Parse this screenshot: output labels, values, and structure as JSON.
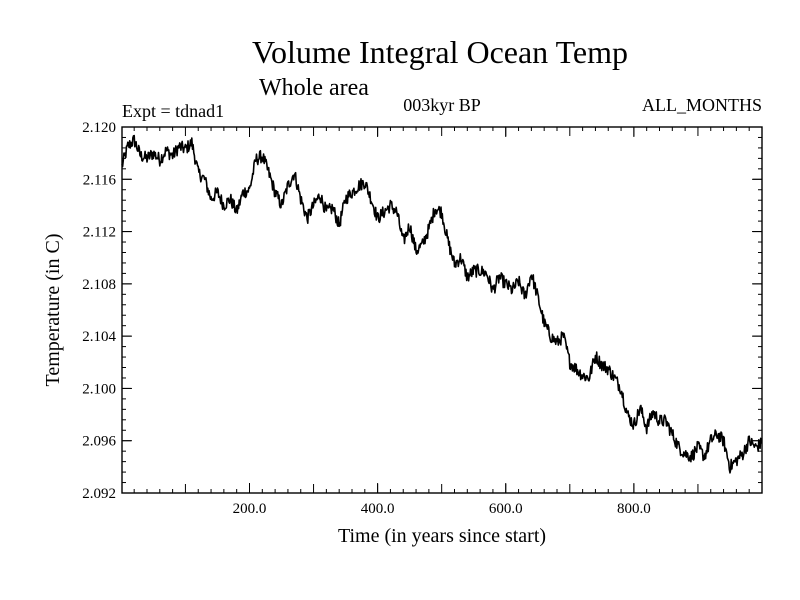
{
  "chart_data": {
    "type": "line",
    "title": "Volume Integral Ocean Temp",
    "subtitle": "Whole area",
    "header_left": "Expt = tdnad1",
    "header_center": "003kyr BP",
    "header_right": "ALL_MONTHS",
    "xlabel": "Time (in years since start)",
    "ylabel": "Temperature (in C)",
    "xlim": [
      1,
      1000
    ],
    "ylim": [
      2.092,
      2.12
    ],
    "x_ticks": [
      {
        "value": 200,
        "label": "200.0"
      },
      {
        "value": 400,
        "label": "400.0"
      },
      {
        "value": 600,
        "label": "600.0"
      },
      {
        "value": 800,
        "label": "800.0"
      }
    ],
    "y_ticks": [
      {
        "value": 2.092,
        "label": "2.092"
      },
      {
        "value": 2.096,
        "label": "2.096"
      },
      {
        "value": 2.1,
        "label": "2.100"
      },
      {
        "value": 2.104,
        "label": "2.104"
      },
      {
        "value": 2.108,
        "label": "2.108"
      },
      {
        "value": 2.112,
        "label": "2.112"
      },
      {
        "value": 2.116,
        "label": "2.116"
      },
      {
        "value": 2.12,
        "label": "2.120"
      }
    ],
    "grid": false,
    "line_color": "#000000",
    "series": [
      {
        "name": "Volume Integral Ocean Temp",
        "x": [
          1,
          10,
          20,
          30,
          40,
          50,
          60,
          70,
          80,
          90,
          100,
          110,
          120,
          130,
          140,
          150,
          160,
          170,
          180,
          190,
          200,
          210,
          220,
          230,
          240,
          250,
          260,
          270,
          280,
          290,
          300,
          310,
          320,
          330,
          340,
          350,
          360,
          370,
          380,
          390,
          400,
          410,
          420,
          430,
          440,
          450,
          460,
          470,
          480,
          490,
          500,
          510,
          520,
          530,
          540,
          550,
          560,
          570,
          580,
          590,
          600,
          610,
          620,
          630,
          640,
          650,
          660,
          670,
          680,
          690,
          700,
          710,
          720,
          730,
          740,
          750,
          760,
          770,
          780,
          790,
          800,
          810,
          820,
          830,
          840,
          850,
          860,
          870,
          880,
          890,
          900,
          910,
          920,
          930,
          940,
          950,
          960,
          970,
          980,
          990,
          1000
        ],
        "y": [
          2.117,
          2.1185,
          2.119,
          2.1178,
          2.1176,
          2.118,
          2.1175,
          2.1182,
          2.1178,
          2.1185,
          2.1183,
          2.1188,
          2.1165,
          2.116,
          2.1145,
          2.115,
          2.114,
          2.1145,
          2.1135,
          2.115,
          2.1152,
          2.1175,
          2.1178,
          2.1165,
          2.115,
          2.114,
          2.1155,
          2.1165,
          2.1145,
          2.113,
          2.114,
          2.1148,
          2.1135,
          2.1138,
          2.1125,
          2.1145,
          2.115,
          2.1155,
          2.1158,
          2.1145,
          2.113,
          2.1135,
          2.114,
          2.1135,
          2.1112,
          2.1125,
          2.1105,
          2.111,
          2.1122,
          2.1138,
          2.1135,
          2.1112,
          2.1095,
          2.11,
          2.1085,
          2.109,
          2.109,
          2.1088,
          2.1075,
          2.1085,
          2.108,
          2.1075,
          2.1082,
          2.107,
          2.1088,
          2.107,
          2.105,
          2.104,
          2.1035,
          2.104,
          2.102,
          2.1015,
          2.101,
          2.1008,
          2.1025,
          2.1018,
          2.1015,
          2.1008,
          2.1,
          2.098,
          2.0972,
          2.0985,
          2.097,
          2.0982,
          2.0975,
          2.0975,
          2.0965,
          2.0955,
          2.095,
          2.0948,
          2.0955,
          2.0948,
          2.096,
          2.0965,
          2.096,
          2.094,
          2.0945,
          2.095,
          2.096,
          2.0955,
          2.0958
        ]
      }
    ]
  }
}
